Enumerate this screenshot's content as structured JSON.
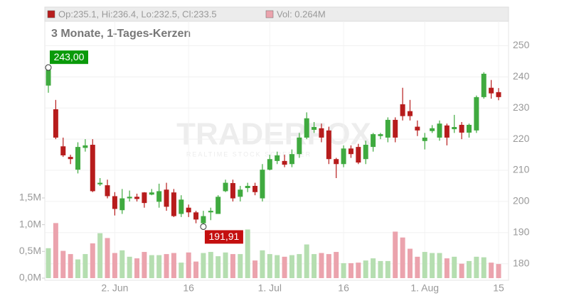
{
  "chart_data": {
    "type": "candlestick",
    "legend": "Op:235.1, Hi:236.4, Lo:232.5, Cl:233.5",
    "volume_legend": "Vol: 0.264M",
    "subtitle": "3 Monate, 1-Tages-Kerzen",
    "watermark": "TRADERFOX",
    "watermark_sub": "REALTIME STOCK SCREENER",
    "max_label": "243,00",
    "min_label": "191,91",
    "categories": [
      null,
      null,
      null,
      null,
      null,
      null,
      null,
      null,
      null,
      "2. Jun",
      null,
      null,
      null,
      null,
      null,
      null,
      null,
      null,
      null,
      "16",
      null,
      null,
      null,
      null,
      null,
      null,
      null,
      null,
      null,
      null,
      "1. Jul",
      null,
      null,
      null,
      null,
      null,
      null,
      null,
      null,
      null,
      "16",
      null,
      null,
      null,
      null,
      null,
      null,
      null,
      null,
      null,
      null,
      "1. Aug",
      null,
      null,
      null,
      null,
      null,
      null,
      null,
      null,
      null,
      "15"
    ],
    "open": [
      237.2,
      229.6,
      217.7,
      214.3,
      210.2,
      217.2,
      218.2,
      205.5,
      205.2,
      201.7,
      197.2,
      201.0,
      201.5,
      202.9,
      202.2,
      199.9,
      203.8,
      202.9,
      196.0,
      198.0,
      196.5,
      193.0,
      196.5,
      196.0,
      203.3,
      205.9,
      201.5,
      204.3,
      205.0,
      201.0,
      210.2,
      213.0,
      213.0,
      212.0,
      215.2,
      220.5,
      223.0,
      223.5,
      222.8,
      213.6,
      212.0,
      217.0,
      217.5,
      213.6,
      217.5,
      221.0,
      220.5,
      226.2,
      231.2,
      229.0,
      224.0,
      219.4,
      222.6,
      220.5,
      224.4,
      223.2,
      224.6,
      222.1,
      222.8,
      233.5,
      236.5,
      235.1
    ],
    "high": [
      243.0,
      232.6,
      220.5,
      215.0,
      219.0,
      220.0,
      220.0,
      207.5,
      207.0,
      203.0,
      204.0,
      203.5,
      202.5,
      203.0,
      204.0,
      205.7,
      206.0,
      204.0,
      202.0,
      199.0,
      197.0,
      197.0,
      198.0,
      202.0,
      207.0,
      207.0,
      205.0,
      206.0,
      206.0,
      212.0,
      215.0,
      216.0,
      215.0,
      216.7,
      222.0,
      228.6,
      225.5,
      225.0,
      224.0,
      214.0,
      218.0,
      218.0,
      218.5,
      219.5,
      222.0,
      222.0,
      227.0,
      227.0,
      236.5,
      232.6,
      226.0,
      222.0,
      224.5,
      226.0,
      225.0,
      227.8,
      225.5,
      225.0,
      234.0,
      241.5,
      239.0,
      236.4
    ],
    "low": [
      234.9,
      220.0,
      214.3,
      212.0,
      209.0,
      216.0,
      203.0,
      205.0,
      201.0,
      195.5,
      196.0,
      200.0,
      200.0,
      198.0,
      202.0,
      198.0,
      197.0,
      195.0,
      195.0,
      195.0,
      193.0,
      191.91,
      194.0,
      196.0,
      203.0,
      200.0,
      200.0,
      203.0,
      202.0,
      200.0,
      210.0,
      212.0,
      211.0,
      211.0,
      214.0,
      220.0,
      222.0,
      219.0,
      212.0,
      207.5,
      211.0,
      214.0,
      212.0,
      212.0,
      216.0,
      220.0,
      219.0,
      219.0,
      226.0,
      226.0,
      221.0,
      216.7,
      222.0,
      219.5,
      218.0,
      222.0,
      220.0,
      220.5,
      222.0,
      233.0,
      233.0,
      232.5
    ],
    "close": [
      242.2,
      220.5,
      214.8,
      213.6,
      217.5,
      218.0,
      203.3,
      206.0,
      201.7,
      197.6,
      201.0,
      201.5,
      200.8,
      199.5,
      202.9,
      203.3,
      198.3,
      195.3,
      200.6,
      196.5,
      194.2,
      195.3,
      197.0,
      201.5,
      206.0,
      201.0,
      203.8,
      205.0,
      203.0,
      210.2,
      213.6,
      214.8,
      211.8,
      215.2,
      220.5,
      226.7,
      223.9,
      220.5,
      213.6,
      212.0,
      217.0,
      215.2,
      212.5,
      218.2,
      221.6,
      221.6,
      226.2,
      220.5,
      227.4,
      227.4,
      222.8,
      220.5,
      223.5,
      225.0,
      220.5,
      223.9,
      222.1,
      224.6,
      233.5,
      241.0,
      234.7,
      233.5
    ],
    "volume": [
      0.56,
      1.03,
      0.51,
      0.45,
      0.35,
      0.45,
      0.65,
      0.84,
      0.75,
      0.47,
      0.52,
      0.4,
      0.37,
      0.49,
      0.43,
      0.43,
      0.45,
      0.47,
      0.29,
      0.48,
      0.31,
      0.47,
      0.49,
      0.41,
      0.48,
      0.45,
      0.45,
      0.91,
      0.33,
      0.52,
      0.45,
      0.43,
      0.4,
      0.43,
      0.45,
      0.63,
      0.45,
      0.47,
      0.45,
      0.49,
      0.28,
      0.28,
      0.29,
      0.33,
      0.37,
      0.32,
      0.32,
      0.87,
      0.76,
      0.55,
      0.4,
      0.49,
      0.47,
      0.47,
      0.37,
      0.4,
      0.27,
      0.32,
      0.4,
      0.39,
      0.29,
      0.264
    ],
    "up_color": "#3faa3f",
    "down_color": "#b71c1c",
    "volume_up_color": "#b5deb0",
    "volume_down_color": "#eba3ad",
    "ylim": [
      174.7,
      262.4
    ],
    "yticks": [
      180,
      190,
      200,
      210,
      220,
      230,
      240,
      250
    ],
    "y2lim": [
      -0.04,
      5.07
    ],
    "y2ticks": [
      {
        "value": 0,
        "label": "0,0M"
      },
      {
        "value": 0.5,
        "label": "0,5M"
      },
      {
        "value": 1,
        "label": "1,0M"
      },
      {
        "value": 1.5,
        "label": "1,5M"
      }
    ],
    "grid": true
  }
}
